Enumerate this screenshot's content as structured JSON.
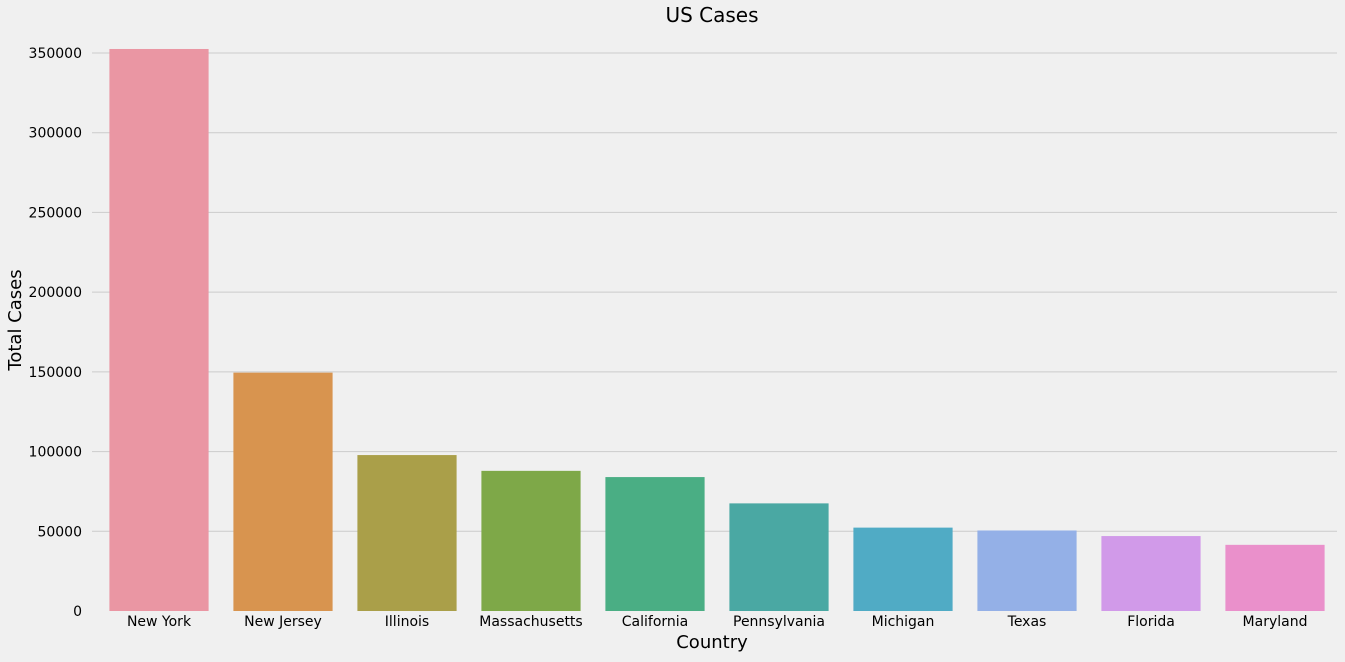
{
  "chart_data": {
    "type": "bar",
    "title": "US Cases",
    "xlabel": "Country",
    "ylabel": "Total Cases",
    "categories": [
      "New York",
      "New Jersey",
      "Illinois",
      "Massachusetts",
      "California",
      "Pennsylvania",
      "Michigan",
      "Texas",
      "Florida",
      "Maryland"
    ],
    "values": [
      352500,
      149500,
      97800,
      87900,
      84000,
      67500,
      52300,
      50500,
      47000,
      41500
    ],
    "colors": [
      "#ea96a3",
      "#d8944f",
      "#aa9f49",
      "#7ea848",
      "#4aae84",
      "#4aa8a3",
      "#50abc5",
      "#94b0e7",
      "#d19ae9",
      "#ea90cb"
    ],
    "ylim": [
      0,
      355000
    ],
    "yticks": [
      0,
      50000,
      100000,
      150000,
      200000,
      250000,
      300000,
      350000
    ],
    "grid": "y",
    "background": "#f0f0f0",
    "grid_color": "#cbcbcb"
  }
}
